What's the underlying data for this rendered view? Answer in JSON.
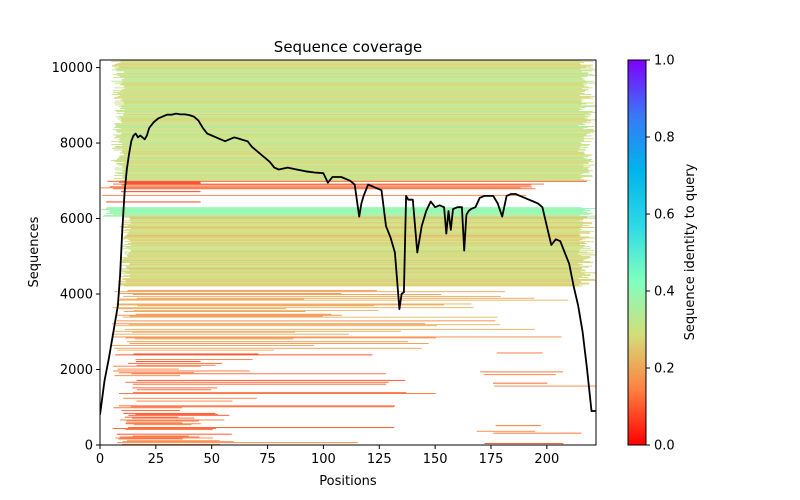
{
  "chart_data": {
    "type": "heatmap",
    "title": "Sequence coverage",
    "xlabel": "Positions",
    "ylabel": "Sequences",
    "xlim": [
      0,
      222
    ],
    "ylim": [
      0,
      10200
    ],
    "xticks": [
      0,
      25,
      50,
      75,
      100,
      125,
      150,
      175,
      200
    ],
    "xtick_labels": [
      "0",
      "25",
      "50",
      "75",
      "100",
      "125",
      "150",
      "175",
      "200"
    ],
    "yticks": [
      0,
      2000,
      4000,
      6000,
      8000,
      10000
    ],
    "ytick_labels": [
      "0",
      "2000",
      "4000",
      "6000",
      "8000",
      "10000"
    ],
    "grid": false,
    "colorbar": {
      "label": "Sequence identity to query",
      "colormap": "rainbow_r",
      "range": [
        0.0,
        1.0
      ],
      "ticks": [
        0.0,
        0.2,
        0.4,
        0.6,
        0.8,
        1.0
      ],
      "tick_labels": [
        "0.0",
        "0.2",
        "0.4",
        "0.6",
        "0.8",
        "1.0"
      ],
      "stops": [
        "#ff0000",
        "#ff7f40",
        "#d4dd7a",
        "#7fffc0",
        "#2dd8e6",
        "#00b4eb",
        "#3a78f5",
        "#7f00ff"
      ]
    },
    "coverage_series": {
      "name": "coverage",
      "color": "#000000",
      "x": [
        0,
        2,
        4,
        6,
        8,
        9,
        10,
        11,
        12,
        13,
        14,
        15,
        16,
        17,
        18,
        19,
        20,
        21,
        22,
        24,
        26,
        28,
        30,
        32,
        34,
        36,
        38,
        40,
        42,
        44,
        46,
        48,
        50,
        52,
        54,
        56,
        58,
        60,
        62,
        64,
        66,
        68,
        70,
        72,
        74,
        76,
        78,
        80,
        84,
        88,
        92,
        96,
        100,
        102,
        104,
        108,
        112,
        114,
        116,
        117,
        118,
        120,
        122,
        124,
        126,
        128,
        130,
        132,
        134,
        135,
        136,
        137,
        138,
        140,
        142,
        144,
        146,
        148,
        150,
        152,
        154,
        155,
        156,
        157,
        158,
        160,
        162,
        163,
        164,
        165,
        166,
        168,
        170,
        172,
        174,
        176,
        178,
        180,
        182,
        184,
        186,
        188,
        190,
        192,
        194,
        196,
        198,
        200,
        202,
        204,
        206,
        208,
        210,
        212,
        214,
        216,
        218,
        220,
        222
      ],
      "y": [
        800,
        1700,
        2300,
        3000,
        3700,
        4500,
        5700,
        6700,
        7300,
        7700,
        8050,
        8200,
        8250,
        8150,
        8200,
        8150,
        8100,
        8200,
        8400,
        8550,
        8650,
        8700,
        8750,
        8750,
        8780,
        8760,
        8760,
        8740,
        8700,
        8600,
        8400,
        8250,
        8200,
        8150,
        8100,
        8050,
        8100,
        8150,
        8120,
        8080,
        8050,
        7900,
        7800,
        7700,
        7600,
        7500,
        7350,
        7300,
        7350,
        7300,
        7250,
        7220,
        7200,
        6950,
        7100,
        7100,
        7000,
        6900,
        6050,
        6400,
        6600,
        6900,
        6850,
        6800,
        6750,
        5800,
        5500,
        5100,
        3600,
        4000,
        4050,
        6600,
        6500,
        6500,
        5100,
        5800,
        6200,
        6450,
        6300,
        6350,
        6300,
        5600,
        6200,
        5700,
        6250,
        6300,
        6300,
        5150,
        6100,
        6200,
        6250,
        6300,
        6550,
        6600,
        6600,
        6600,
        6400,
        6050,
        6600,
        6650,
        6650,
        6600,
        6550,
        6500,
        6450,
        6400,
        6300,
        5800,
        5300,
        5450,
        5400,
        5100,
        4800,
        4200,
        3700,
        3000,
        2000,
        900,
        900
      ]
    },
    "band_regions": [
      {
        "y_range": [
          7000,
          10200
        ],
        "x_range": [
          5,
          222
        ],
        "identity": 0.3,
        "description": "dense, mostly tan/yellow-orange (~0.28-0.34) with scattered gaps near positions 133-140"
      },
      {
        "y_range": [
          6400,
          7000
        ],
        "x_range": [
          0,
          222
        ],
        "identity": 0.12,
        "description": "sparse red-orange rows, with a red block at positions 5-45"
      },
      {
        "y_range": [
          6050,
          6300
        ],
        "x_range": [
          0,
          222
        ],
        "identity": 0.38,
        "description": "light green-yellow band"
      },
      {
        "y_range": [
          4200,
          6050
        ],
        "x_range": [
          8,
          222
        ],
        "identity": 0.28,
        "description": "dense tan/orange block"
      },
      {
        "y_range": [
          2500,
          4200
        ],
        "x_range": [
          5,
          222
        ],
        "identity": 0.2,
        "description": "orange rows, thinning beyond position 140"
      },
      {
        "y_range": [
          0,
          2500
        ],
        "x_range": [
          5,
          65
        ],
        "identity": 0.12,
        "description": "red-orange rows concentrated at the N-terminus, plus scattered C-terminal rows at positions 170-215"
      }
    ]
  }
}
